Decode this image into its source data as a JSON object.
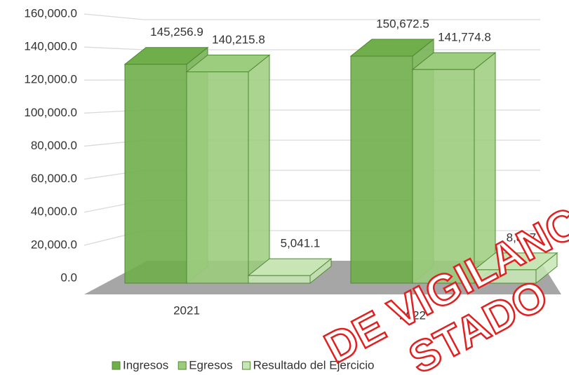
{
  "chart_data": {
    "type": "bar3d",
    "categories": [
      "2021",
      "2022"
    ],
    "series": [
      {
        "name": "Ingresos",
        "color": "#6fae4a",
        "values": [
          145256.9,
          150672.5
        ],
        "value_labels": [
          "145,256.9",
          "150,672.5"
        ]
      },
      {
        "name": "Egresos",
        "color": "#9ccc7e",
        "values": [
          140215.8,
          141774.8
        ],
        "value_labels": [
          "140,215.8",
          "141,774.8"
        ]
      },
      {
        "name": "Resultado del Ejercicio",
        "color": "#c8e6b5",
        "values": [
          5041.1,
          8897.7
        ],
        "value_labels": [
          "5,041.1",
          "8,897.7"
        ]
      }
    ],
    "ylim": [
      0,
      160000
    ],
    "yticks": [
      {
        "value": 0,
        "label": "0.0"
      },
      {
        "value": 20000,
        "label": "20,000.0"
      },
      {
        "value": 40000,
        "label": "40,000.0"
      },
      {
        "value": 60000,
        "label": "60,000.0"
      },
      {
        "value": 80000,
        "label": "80,000.0"
      },
      {
        "value": 100000,
        "label": "100,000.0"
      },
      {
        "value": 120000,
        "label": "120,000.0"
      },
      {
        "value": 140000,
        "label": "140,000.0"
      },
      {
        "value": 160000,
        "label": "160,000.0"
      }
    ],
    "grid": true,
    "legend": "bottom",
    "watermark": [
      "DE VIGILANCIA",
      "STADO"
    ]
  }
}
